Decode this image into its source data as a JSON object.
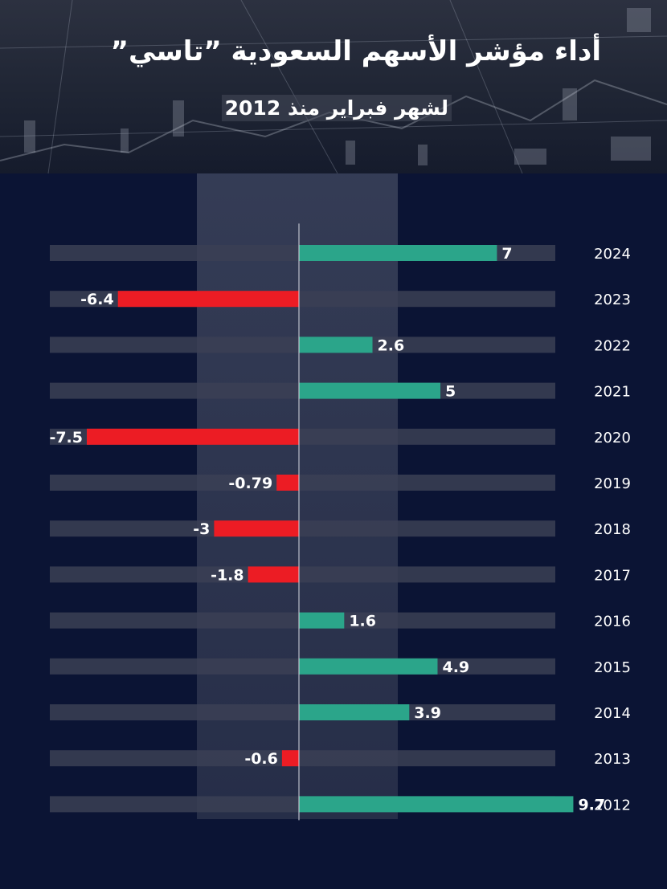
{
  "header": {
    "title": "أداء مؤشر الأسهم السعودية ”تاسي”",
    "subtitle": "لشهر فبراير منذ 2012"
  },
  "colors": {
    "positive": "#2ba58a",
    "negative": "#ec1c24",
    "track": "#3b3f55",
    "background": "#0b1434"
  },
  "chart_data": {
    "type": "bar",
    "orientation": "horizontal",
    "title": "أداء مؤشر الأسهم السعودية ”تاسي”",
    "subtitle": "لشهر فبراير منذ 2012",
    "categories": [
      "2024",
      "2023",
      "2022",
      "2021",
      "2020",
      "2019",
      "2018",
      "2017",
      "2016",
      "2015",
      "2014",
      "2013",
      "2012"
    ],
    "value_labels": [
      "7",
      "-6.4",
      "2.6",
      "5",
      "-7.5",
      "-0.79",
      "-3",
      "-1.8",
      "1.6",
      "4.9",
      "3.9",
      "-0.6",
      "9.7"
    ],
    "values": [
      7,
      -6.4,
      2.6,
      5,
      -7.5,
      -0.79,
      -3,
      -1.8,
      1.6,
      4.9,
      3.9,
      -0.6,
      9.7
    ],
    "xlim": [
      -9,
      9
    ],
    "xlabel": "",
    "ylabel": "",
    "grid": false,
    "legend": "none"
  }
}
